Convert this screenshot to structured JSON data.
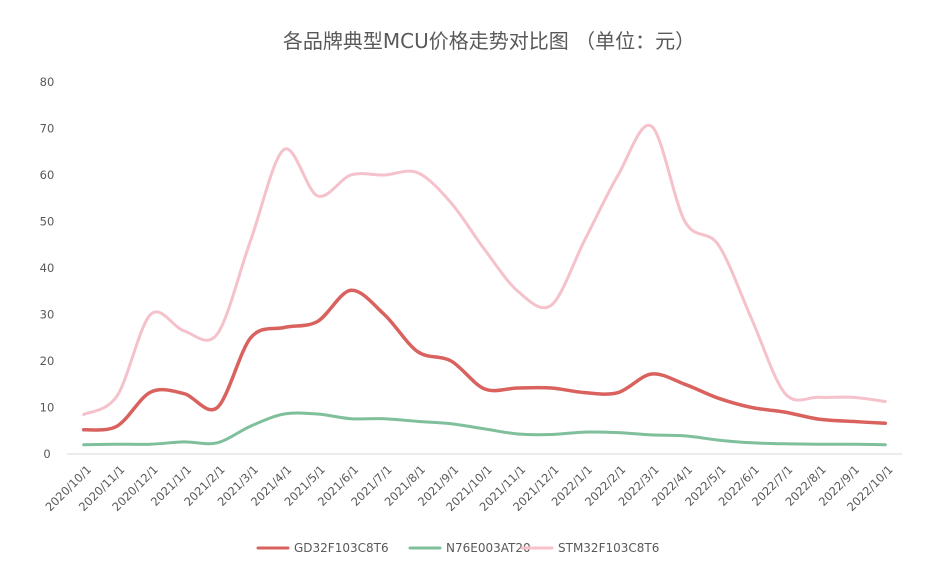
{
  "chart_data": {
    "type": "line",
    "title": "各品牌典型MCU价格走势对比图 （单位：元）",
    "xlabel": "",
    "ylabel": "",
    "categories": [
      "2020/10/1",
      "2020/11/1",
      "2020/12/1",
      "2021/1/1",
      "2021/2/1",
      "2021/3/1",
      "2021/4/1",
      "2021/5/1",
      "2021/6/1",
      "2021/7/1",
      "2021/8/1",
      "2021/9/1",
      "2021/10/1",
      "2021/11/1",
      "2021/12/1",
      "2022/1/1",
      "2022/2/1",
      "2022/3/1",
      "2022/4/1",
      "2022/5/1",
      "2022/6/1",
      "2022/7/1",
      "2022/8/1",
      "2022/9/1",
      "2022/10/1"
    ],
    "yticks": [
      "0",
      "10",
      "20",
      "30",
      "40",
      "50",
      "60",
      "70",
      "80"
    ],
    "ylim": [
      0,
      80
    ],
    "grid": false,
    "legend_position": "bottom",
    "series": [
      {
        "name": "GD32F103C8T6",
        "color": "#d9625e",
        "values": [
          5.2,
          6,
          13.3,
          13,
          10,
          25,
          27.2,
          28.5,
          35.2,
          30,
          22,
          20,
          14,
          14.2,
          14.2,
          13.2,
          13.2,
          17.2,
          15,
          12,
          10,
          9,
          7.5,
          7,
          6.6
        ]
      },
      {
        "name": "N76E003AT20",
        "color": "#7fbf9c",
        "values": [
          2,
          2.1,
          2.1,
          2.6,
          2.4,
          6,
          8.6,
          8.6,
          7.6,
          7.6,
          7,
          6.5,
          5.4,
          4.3,
          4.2,
          4.7,
          4.6,
          4.1,
          3.9,
          3,
          2.4,
          2.2,
          2.1,
          2.1,
          2
        ]
      },
      {
        "name": "STM32F103C8T6",
        "color": "#f5c1cb",
        "values": [
          8.5,
          12.5,
          30,
          26.5,
          25.8,
          46,
          65.5,
          55.5,
          60,
          60,
          60.5,
          54,
          44,
          35,
          32,
          46,
          60,
          70.5,
          50,
          45,
          29,
          13,
          12.2,
          12.2,
          11.3
        ]
      }
    ]
  }
}
